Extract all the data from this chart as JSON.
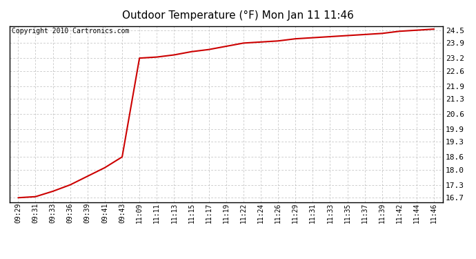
{
  "title": "Outdoor Temperature (°F) Mon Jan 11 11:46",
  "copyright_text": "Copyright 2010 Cartronics.com",
  "line_color": "#cc0000",
  "background_color": "#ffffff",
  "plot_bg_color": "#ffffff",
  "grid_color": "#aaaaaa",
  "border_color": "#000000",
  "yticks": [
    16.7,
    17.3,
    18.0,
    18.6,
    19.3,
    19.9,
    20.6,
    21.3,
    21.9,
    22.6,
    23.2,
    23.9,
    24.5
  ],
  "ylim": [
    16.5,
    24.7
  ],
  "xtick_labels": [
    "09:29",
    "09:31",
    "09:33",
    "09:36",
    "09:39",
    "09:41",
    "09:43",
    "11:09",
    "11:11",
    "11:13",
    "11:15",
    "11:17",
    "11:19",
    "11:22",
    "11:24",
    "11:26",
    "11:29",
    "11:31",
    "11:33",
    "11:35",
    "11:37",
    "11:39",
    "11:42",
    "11:44",
    "11:46"
  ],
  "x_values": [
    0,
    1,
    2,
    3,
    4,
    5,
    6,
    7,
    8,
    9,
    10,
    11,
    12,
    13,
    14,
    15,
    16,
    17,
    18,
    19,
    20,
    21,
    22,
    23,
    24
  ],
  "y_values": [
    16.7,
    16.75,
    17.0,
    17.3,
    17.7,
    18.1,
    18.6,
    23.2,
    23.25,
    23.35,
    23.5,
    23.6,
    23.75,
    23.9,
    23.95,
    24.0,
    24.1,
    24.15,
    24.2,
    24.25,
    24.3,
    24.35,
    24.45,
    24.5,
    24.55
  ],
  "title_fontsize": 11,
  "tick_fontsize": 7,
  "ytick_fontsize": 8,
  "copyright_fontsize": 7,
  "figwidth": 6.9,
  "figheight": 3.75,
  "dpi": 100
}
